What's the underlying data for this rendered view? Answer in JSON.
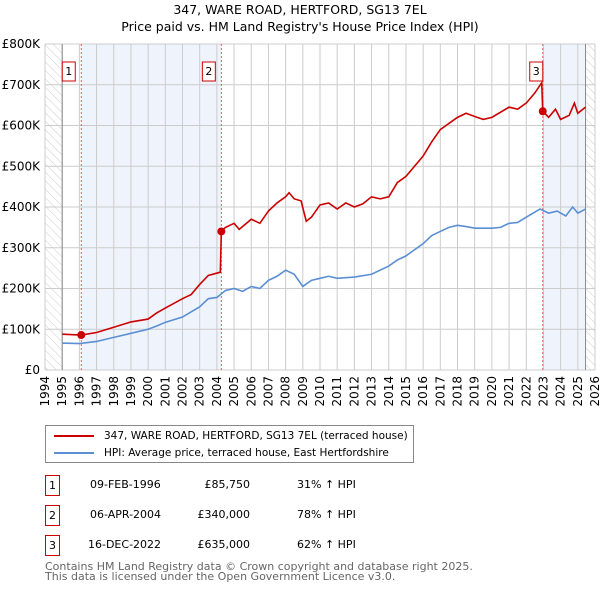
{
  "chart_data": {
    "type": "line",
    "title": "347, WARE ROAD, HERTFORD, SG13 7EL",
    "subtitle": "Price paid vs. HM Land Registry's House Price Index (HPI)",
    "xlim": [
      1994,
      2026
    ],
    "ylim": [
      0,
      800000
    ],
    "x_ticks": [
      "1994",
      "1995",
      "1996",
      "1997",
      "1998",
      "1999",
      "2000",
      "2001",
      "2002",
      "2003",
      "2004",
      "2005",
      "2006",
      "2007",
      "2008",
      "2009",
      "2010",
      "2011",
      "2012",
      "2013",
      "2014",
      "2015",
      "2016",
      "2017",
      "2018",
      "2019",
      "2020",
      "2021",
      "2022",
      "2023",
      "2024",
      "2025",
      "2026"
    ],
    "y_ticks": [
      {
        "v": 0,
        "label": "£0"
      },
      {
        "v": 100000,
        "label": "£100K"
      },
      {
        "v": 200000,
        "label": "£200K"
      },
      {
        "v": 300000,
        "label": "£300K"
      },
      {
        "v": 400000,
        "label": "£400K"
      },
      {
        "v": 500000,
        "label": "£500K"
      },
      {
        "v": 600000,
        "label": "£600K"
      },
      {
        "v": 700000,
        "label": "£700K"
      },
      {
        "v": 800000,
        "label": "£800K"
      }
    ],
    "grid": true,
    "data_end": 2025.45,
    "shaded_ranges": [
      [
        1996.11,
        2004.26
      ],
      [
        2022.96,
        2025.45
      ]
    ],
    "series": [
      {
        "name": "347, WARE ROAD, HERTFORD, SG13 7EL (terraced house)",
        "color": "#cc0000",
        "points": [
          [
            1995,
            88
          ],
          [
            1996.11,
            85.75
          ],
          [
            1997,
            92
          ],
          [
            1998,
            105
          ],
          [
            1999,
            118
          ],
          [
            2000,
            125
          ],
          [
            2000.5,
            140
          ],
          [
            2001,
            152
          ],
          [
            2002,
            175
          ],
          [
            2002.5,
            185
          ],
          [
            2003,
            210
          ],
          [
            2003.5,
            232
          ],
          [
            2004.2,
            240
          ],
          [
            2004.26,
            340
          ],
          [
            2004.5,
            350
          ],
          [
            2005,
            360
          ],
          [
            2005.3,
            345
          ],
          [
            2006,
            370
          ],
          [
            2006.5,
            360
          ],
          [
            2007,
            390
          ],
          [
            2007.5,
            410
          ],
          [
            2008,
            425
          ],
          [
            2008.2,
            435
          ],
          [
            2008.5,
            420
          ],
          [
            2008.9,
            415
          ],
          [
            2009.2,
            365
          ],
          [
            2009.5,
            375
          ],
          [
            2010,
            405
          ],
          [
            2010.5,
            410
          ],
          [
            2011,
            395
          ],
          [
            2011.5,
            410
          ],
          [
            2012,
            400
          ],
          [
            2012.5,
            408
          ],
          [
            2013,
            425
          ],
          [
            2013.5,
            420
          ],
          [
            2014,
            425
          ],
          [
            2014.5,
            460
          ],
          [
            2015,
            475
          ],
          [
            2015.5,
            500
          ],
          [
            2016,
            525
          ],
          [
            2016.5,
            560
          ],
          [
            2017,
            590
          ],
          [
            2017.5,
            605
          ],
          [
            2018,
            620
          ],
          [
            2018.5,
            630
          ],
          [
            2019,
            622
          ],
          [
            2019.5,
            615
          ],
          [
            2020,
            620
          ],
          [
            2021,
            645
          ],
          [
            2021.5,
            640
          ],
          [
            2022,
            655
          ],
          [
            2022.5,
            680
          ],
          [
            2022.9,
            705
          ],
          [
            2022.96,
            635
          ],
          [
            2023.3,
            620
          ],
          [
            2023.7,
            640
          ],
          [
            2024,
            615
          ],
          [
            2024.5,
            625
          ],
          [
            2024.8,
            655
          ],
          [
            2025,
            630
          ],
          [
            2025.45,
            645
          ]
        ]
      },
      {
        "name": "HPI: Average price, terraced house, East Hertfordshire",
        "color": "#5b8fd4",
        "points": [
          [
            1995,
            66
          ],
          [
            1996,
            65
          ],
          [
            1997,
            70
          ],
          [
            1998,
            80
          ],
          [
            1999,
            90
          ],
          [
            2000,
            100
          ],
          [
            2000.5,
            108
          ],
          [
            2001,
            117
          ],
          [
            2002,
            130
          ],
          [
            2003,
            155
          ],
          [
            2003.5,
            175
          ],
          [
            2004,
            178
          ],
          [
            2004.5,
            195
          ],
          [
            2005,
            200
          ],
          [
            2005.5,
            193
          ],
          [
            2006,
            205
          ],
          [
            2006.5,
            200
          ],
          [
            2007,
            220
          ],
          [
            2007.5,
            230
          ],
          [
            2008,
            245
          ],
          [
            2008.5,
            235
          ],
          [
            2009,
            205
          ],
          [
            2009.5,
            220
          ],
          [
            2010,
            225
          ],
          [
            2010.5,
            230
          ],
          [
            2011,
            225
          ],
          [
            2012,
            228
          ],
          [
            2013,
            235
          ],
          [
            2014,
            255
          ],
          [
            2014.5,
            270
          ],
          [
            2015,
            280
          ],
          [
            2016,
            310
          ],
          [
            2016.5,
            330
          ],
          [
            2017,
            340
          ],
          [
            2017.5,
            350
          ],
          [
            2018,
            355
          ],
          [
            2018.5,
            352
          ],
          [
            2019,
            348
          ],
          [
            2020,
            348
          ],
          [
            2020.5,
            350
          ],
          [
            2021,
            360
          ],
          [
            2021.5,
            362
          ],
          [
            2022,
            375
          ],
          [
            2022.8,
            395
          ],
          [
            2023.3,
            385
          ],
          [
            2023.8,
            390
          ],
          [
            2024.3,
            378
          ],
          [
            2024.7,
            400
          ],
          [
            2025,
            385
          ],
          [
            2025.45,
            395
          ]
        ]
      }
    ],
    "y_units": "£ thousands for points",
    "sales": [
      {
        "id": "1",
        "x": 2026.0,
        "date": "09-FEB-1996",
        "price": "£85,750",
        "hpi": "31% ↑ HPI",
        "year": 1996.11,
        "value": 85.75
      },
      {
        "id": "2",
        "date": "06-APR-2004",
        "price": "£340,000",
        "hpi": "78% ↑ HPI",
        "year": 2004.26,
        "value": 340
      },
      {
        "id": "3",
        "date": "16-DEC-2022",
        "price": "£635,000",
        "hpi": "62% ↑ HPI",
        "year": 2022.96,
        "value": 635
      }
    ]
  },
  "footer": {
    "line1": "Contains HM Land Registry data © Crown copyright and database right 2025.",
    "line2": "This data is licensed under the Open Government Licence v3.0."
  }
}
